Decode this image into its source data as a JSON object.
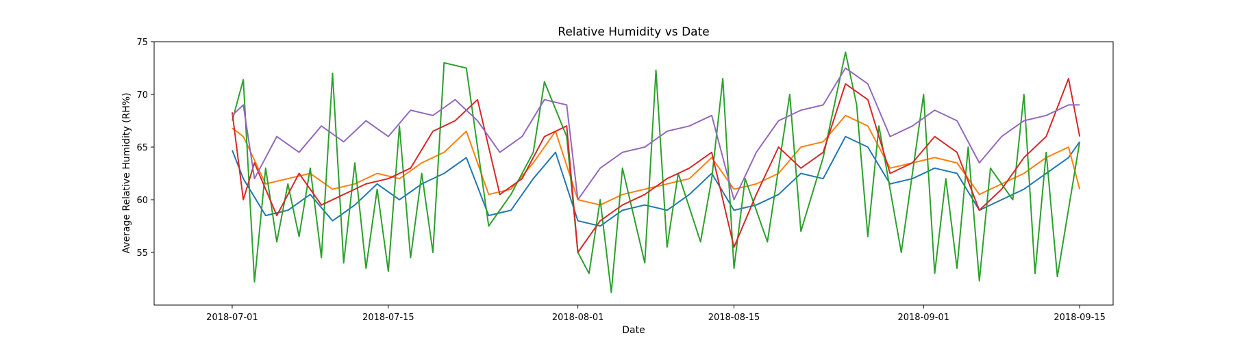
{
  "chart_data": {
    "type": "line",
    "title": "Relative Humidity vs Date",
    "xlabel": "Date",
    "ylabel": "Average Relative Humidity (RH%)",
    "x_range": [
      "2018-06-24",
      "2018-09-18"
    ],
    "ylim": [
      50,
      75
    ],
    "x_ticks": [
      "2018-07-01",
      "2018-07-15",
      "2018-08-01",
      "2018-08-15",
      "2018-09-01",
      "2018-09-15"
    ],
    "y_ticks": [
      55,
      60,
      65,
      70,
      75
    ],
    "grid": false,
    "legend": false,
    "colors": {
      "s1": "#1f77b4",
      "s2": "#ff7f0e",
      "s3": "#2ca02c",
      "s4": "#d62728",
      "s5": "#9467bd"
    },
    "series": [
      {
        "color": "#1f77b4",
        "x": [
          "2018-07-01",
          "2018-07-02",
          "2018-07-04",
          "2018-07-06",
          "2018-07-08",
          "2018-07-10",
          "2018-07-12",
          "2018-07-14",
          "2018-07-16",
          "2018-07-18",
          "2018-07-20",
          "2018-07-22",
          "2018-07-24",
          "2018-07-26",
          "2018-07-28",
          "2018-07-30",
          "2018-08-01",
          "2018-08-03",
          "2018-08-05",
          "2018-08-07",
          "2018-08-09",
          "2018-08-11",
          "2018-08-13",
          "2018-08-15",
          "2018-08-17",
          "2018-08-19",
          "2018-08-21",
          "2018-08-23",
          "2018-08-25",
          "2018-08-27",
          "2018-08-29",
          "2018-08-31",
          "2018-09-02",
          "2018-09-04",
          "2018-09-06",
          "2018-09-08",
          "2018-09-10",
          "2018-09-12",
          "2018-09-14",
          "2018-09-15"
        ],
        "y": [
          64.7,
          62.0,
          58.5,
          59.0,
          60.5,
          58.0,
          59.5,
          61.5,
          60.0,
          61.5,
          62.5,
          64.0,
          58.5,
          59.0,
          62.0,
          64.5,
          58.0,
          57.5,
          59.0,
          59.5,
          59.0,
          60.5,
          62.5,
          59.0,
          59.5,
          60.5,
          62.5,
          62.0,
          66.0,
          65.0,
          61.5,
          62.0,
          63.0,
          62.5,
          59.0,
          60.0,
          61.0,
          62.5,
          64.0,
          65.5
        ]
      },
      {
        "color": "#ff7f0e",
        "x": [
          "2018-07-01",
          "2018-07-02",
          "2018-07-04",
          "2018-07-06",
          "2018-07-08",
          "2018-07-10",
          "2018-07-12",
          "2018-07-14",
          "2018-07-16",
          "2018-07-18",
          "2018-07-20",
          "2018-07-22",
          "2018-07-24",
          "2018-07-26",
          "2018-07-28",
          "2018-07-30",
          "2018-08-01",
          "2018-08-03",
          "2018-08-05",
          "2018-08-07",
          "2018-08-09",
          "2018-08-11",
          "2018-08-13",
          "2018-08-15",
          "2018-08-17",
          "2018-08-19",
          "2018-08-21",
          "2018-08-23",
          "2018-08-25",
          "2018-08-27",
          "2018-08-29",
          "2018-08-31",
          "2018-09-02",
          "2018-09-04",
          "2018-09-06",
          "2018-09-08",
          "2018-09-10",
          "2018-09-12",
          "2018-09-14",
          "2018-09-15"
        ],
        "y": [
          66.8,
          66.0,
          61.5,
          62.0,
          62.5,
          61.0,
          61.5,
          62.5,
          62.0,
          63.5,
          64.5,
          66.5,
          60.5,
          61.0,
          63.5,
          66.5,
          60.0,
          59.5,
          60.5,
          61.0,
          61.5,
          62.0,
          64.0,
          61.0,
          61.5,
          62.5,
          65.0,
          65.5,
          68.0,
          67.0,
          63.0,
          63.5,
          64.0,
          63.5,
          60.5,
          61.5,
          62.5,
          64.0,
          65.0,
          61.0
        ]
      },
      {
        "color": "#2ca02c",
        "x": [
          "2018-07-01",
          "2018-07-02",
          "2018-07-03",
          "2018-07-04",
          "2018-07-05",
          "2018-07-06",
          "2018-07-07",
          "2018-07-08",
          "2018-07-09",
          "2018-07-10",
          "2018-07-11",
          "2018-07-12",
          "2018-07-13",
          "2018-07-14",
          "2018-07-15",
          "2018-07-16",
          "2018-07-17",
          "2018-07-18",
          "2018-07-19",
          "2018-07-20",
          "2018-07-22",
          "2018-07-24",
          "2018-07-26",
          "2018-07-28",
          "2018-07-29",
          "2018-07-31",
          "2018-08-01",
          "2018-08-02",
          "2018-08-03",
          "2018-08-04",
          "2018-08-05",
          "2018-08-07",
          "2018-08-08",
          "2018-08-09",
          "2018-08-10",
          "2018-08-12",
          "2018-08-13",
          "2018-08-14",
          "2018-08-15",
          "2018-08-16",
          "2018-08-18",
          "2018-08-20",
          "2018-08-21",
          "2018-08-23",
          "2018-08-25",
          "2018-08-26",
          "2018-08-27",
          "2018-08-28",
          "2018-08-30",
          "2018-09-01",
          "2018-09-02",
          "2018-09-03",
          "2018-09-04",
          "2018-09-05",
          "2018-09-06",
          "2018-09-07",
          "2018-09-09",
          "2018-09-10",
          "2018-09-11",
          "2018-09-12",
          "2018-09-13",
          "2018-09-15"
        ],
        "y": [
          67.5,
          71.4,
          52.2,
          63.0,
          56.0,
          61.5,
          56.5,
          63.0,
          54.5,
          72.0,
          54.0,
          63.5,
          53.5,
          61.0,
          53.2,
          67.0,
          54.5,
          62.5,
          55.0,
          73.0,
          72.5,
          57.5,
          60.5,
          64.5,
          71.2,
          66.0,
          55.0,
          53.0,
          60.0,
          51.2,
          63.0,
          54.0,
          72.3,
          55.5,
          62.5,
          56.0,
          62.0,
          71.5,
          53.5,
          62.0,
          56.0,
          70.0,
          57.0,
          64.0,
          74.0,
          69.0,
          56.5,
          67.0,
          55.0,
          70.0,
          53.0,
          62.0,
          53.5,
          65.0,
          52.3,
          63.0,
          60.0,
          70.0,
          53.0,
          64.5,
          52.7,
          65.5
        ]
      },
      {
        "color": "#d62728",
        "x": [
          "2018-07-01",
          "2018-07-02",
          "2018-07-03",
          "2018-07-05",
          "2018-07-07",
          "2018-07-09",
          "2018-07-11",
          "2018-07-13",
          "2018-07-15",
          "2018-07-17",
          "2018-07-19",
          "2018-07-21",
          "2018-07-23",
          "2018-07-25",
          "2018-07-27",
          "2018-07-29",
          "2018-07-31",
          "2018-08-01",
          "2018-08-03",
          "2018-08-05",
          "2018-08-07",
          "2018-08-09",
          "2018-08-11",
          "2018-08-13",
          "2018-08-15",
          "2018-08-17",
          "2018-08-19",
          "2018-08-21",
          "2018-08-23",
          "2018-08-25",
          "2018-08-27",
          "2018-08-29",
          "2018-08-31",
          "2018-09-02",
          "2018-09-04",
          "2018-09-06",
          "2018-09-08",
          "2018-09-10",
          "2018-09-12",
          "2018-09-14",
          "2018-09-15"
        ],
        "y": [
          68.3,
          60.0,
          63.5,
          58.5,
          62.5,
          59.5,
          60.5,
          61.5,
          62.0,
          63.0,
          66.5,
          67.5,
          69.5,
          60.5,
          62.0,
          66.0,
          67.0,
          55.0,
          58.0,
          59.5,
          60.5,
          62.0,
          63.0,
          64.5,
          55.5,
          60.5,
          65.0,
          63.0,
          64.5,
          71.0,
          69.5,
          62.5,
          63.5,
          66.0,
          64.5,
          59.0,
          61.0,
          64.0,
          66.0,
          71.5,
          66.0
        ]
      },
      {
        "color": "#9467bd",
        "x": [
          "2018-07-01",
          "2018-07-02",
          "2018-07-03",
          "2018-07-05",
          "2018-07-07",
          "2018-07-09",
          "2018-07-11",
          "2018-07-13",
          "2018-07-15",
          "2018-07-17",
          "2018-07-19",
          "2018-07-21",
          "2018-07-23",
          "2018-07-25",
          "2018-07-27",
          "2018-07-29",
          "2018-07-31",
          "2018-08-01",
          "2018-08-03",
          "2018-08-05",
          "2018-08-07",
          "2018-08-09",
          "2018-08-11",
          "2018-08-13",
          "2018-08-15",
          "2018-08-17",
          "2018-08-19",
          "2018-08-21",
          "2018-08-23",
          "2018-08-25",
          "2018-08-27",
          "2018-08-29",
          "2018-08-31",
          "2018-09-02",
          "2018-09-04",
          "2018-09-06",
          "2018-09-08",
          "2018-09-10",
          "2018-09-12",
          "2018-09-14",
          "2018-09-15"
        ],
        "y": [
          68.0,
          69.0,
          62.0,
          66.0,
          64.5,
          67.0,
          65.5,
          67.5,
          66.0,
          68.5,
          68.0,
          69.5,
          67.5,
          64.5,
          66.0,
          69.5,
          69.0,
          60.0,
          63.0,
          64.5,
          65.0,
          66.5,
          67.0,
          68.0,
          60.0,
          64.5,
          67.5,
          68.5,
          69.0,
          72.5,
          71.0,
          66.0,
          67.0,
          68.5,
          67.5,
          63.5,
          66.0,
          67.5,
          68.0,
          69.0,
          69.0
        ]
      }
    ]
  }
}
